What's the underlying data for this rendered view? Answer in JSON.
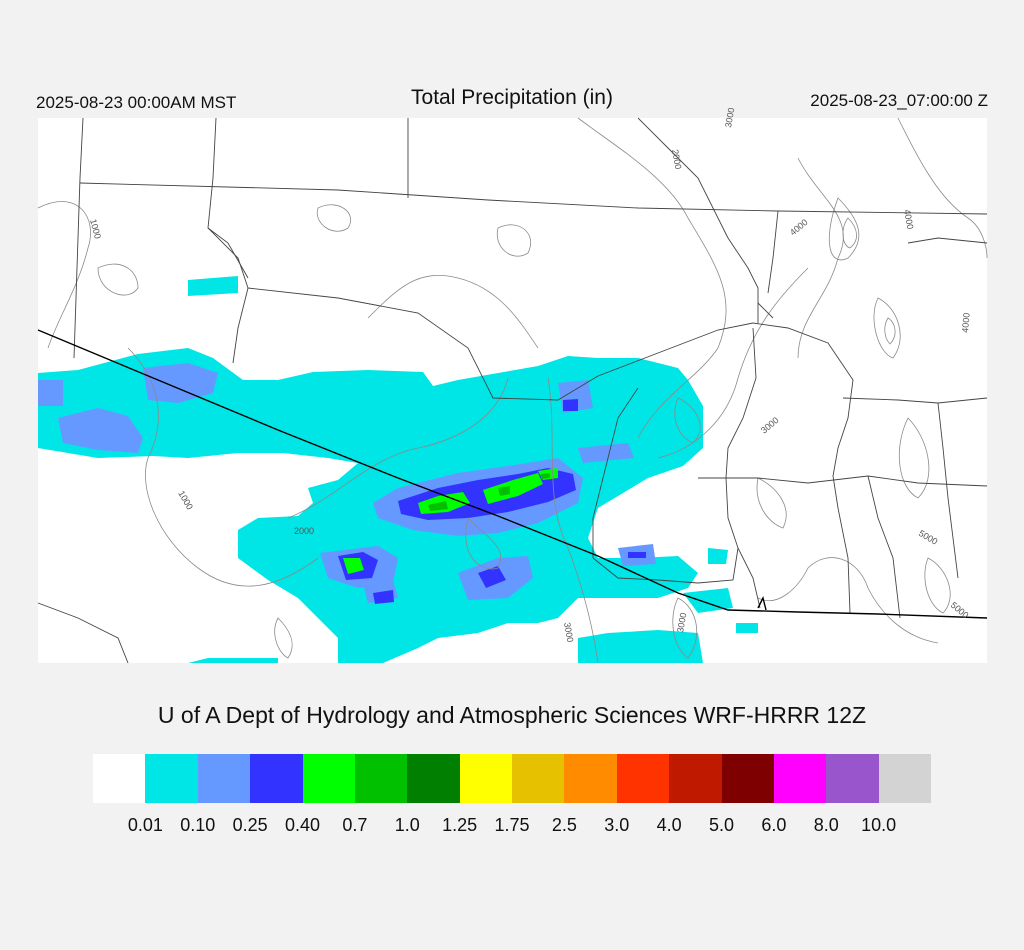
{
  "header": {
    "local_time": "2025-08-23 00:00AM MST",
    "title": "Total Precipitation (in)",
    "utc_time": "2025-08-23_07:00:00 Z"
  },
  "credit": "U of A Dept of Hydrology and Atmospheric Sciences WRF-HRRR 12Z",
  "contour_labels": [
    "1000",
    "1000",
    "2000",
    "2000",
    "3000",
    "3000",
    "3000",
    "4000",
    "4000",
    "4000",
    "5000",
    "5000",
    "3000"
  ],
  "colorbar": {
    "colors": [
      "#ffffff",
      "#00e5e5",
      "#6699ff",
      "#3333ff",
      "#00ff00",
      "#00c000",
      "#007f00",
      "#ffff00",
      "#e5c100",
      "#ff8c00",
      "#ff3300",
      "#bf1900",
      "#7f0000",
      "#ff00ff",
      "#9955cc",
      "#d3d3d3"
    ],
    "labels": [
      "0.01",
      "0.10",
      "0.25",
      "0.40",
      "0.7",
      "1.0",
      "1.25",
      "1.75",
      "2.5",
      "3.0",
      "4.0",
      "5.0",
      "6.0",
      "8.0",
      "10.0"
    ]
  }
}
